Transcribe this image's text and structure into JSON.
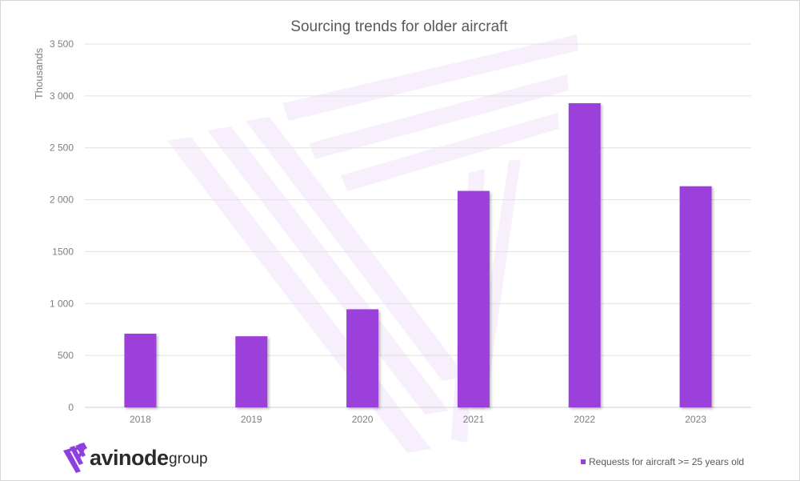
{
  "chart_data": {
    "type": "bar",
    "title": "Sourcing trends for older aircraft",
    "xlabel": "",
    "ylabel": "Thousands",
    "categories": [
      "2018",
      "2019",
      "2020",
      "2021",
      "2022",
      "2023"
    ],
    "series": [
      {
        "name": "Requests for aircraft >= 25 years old",
        "values": [
          710,
          685,
          945,
          2085,
          2930,
          2130
        ]
      }
    ],
    "ylim": [
      0,
      3500
    ],
    "yticks": [
      0,
      500,
      1000,
      1500,
      2000,
      2500,
      3000,
      3500
    ],
    "ytick_labels": [
      "0",
      "500",
      "1 000",
      "1500",
      "2 000",
      "2 500",
      "3 000",
      "3 500"
    ],
    "grid": true,
    "legend_position": "bottom-right",
    "bar_color": "#9b3fda"
  },
  "logo": {
    "word": "avinode",
    "suffix": "group",
    "colors": {
      "primary": "#8e3fe0",
      "text": "#2b2b2b"
    }
  }
}
